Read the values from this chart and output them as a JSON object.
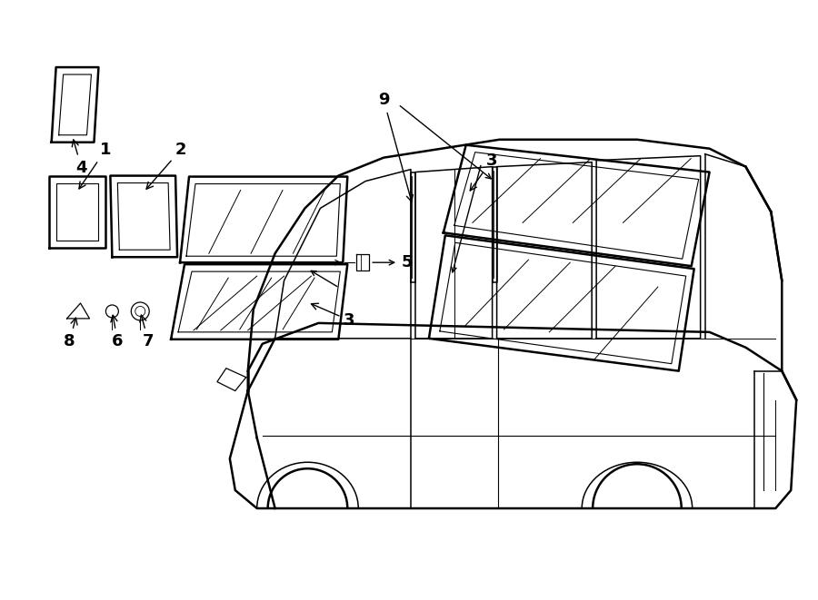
{
  "bg_color": "#ffffff",
  "line_color": "#000000",
  "fig_width": 9.0,
  "fig_height": 6.61,
  "lw_thick": 1.8,
  "lw_main": 1.1,
  "lw_thin": 0.7,
  "label_fs": 13
}
